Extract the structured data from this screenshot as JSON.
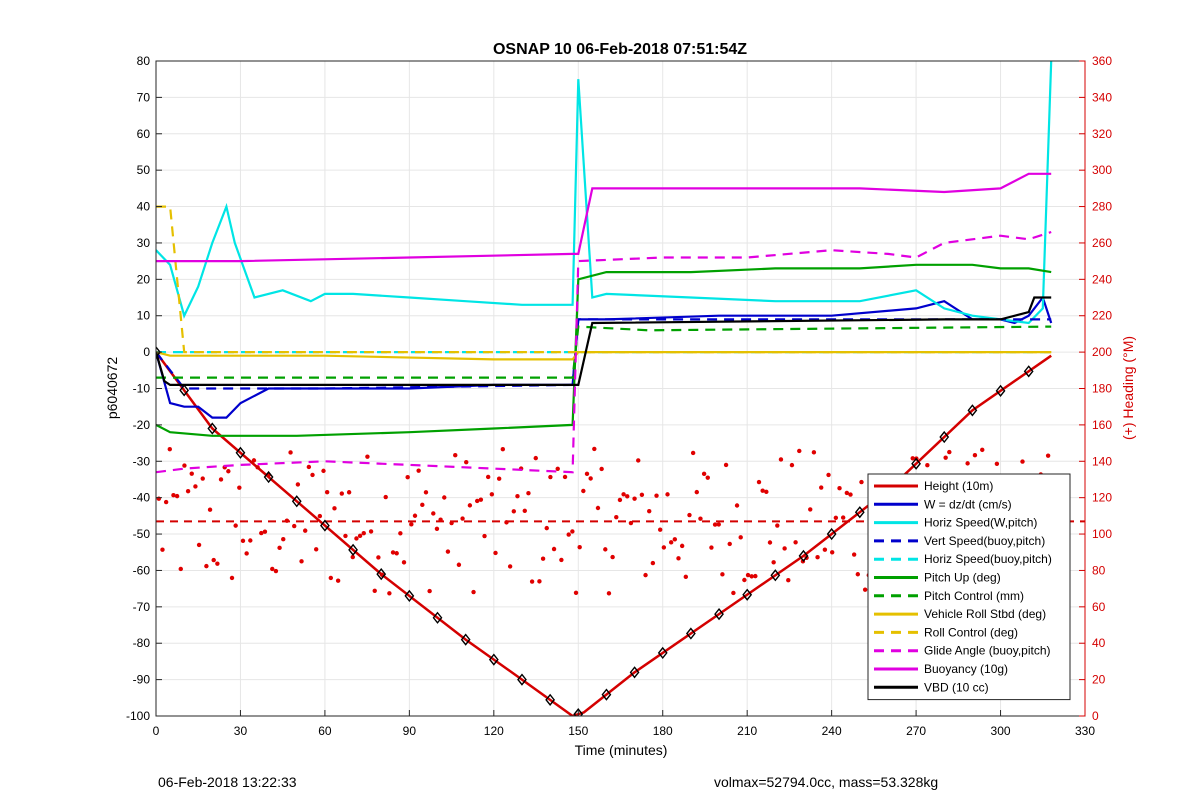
{
  "chart_data": {
    "type": "line",
    "title": "OSNAP 10 06-Feb-2018 07:51:54Z",
    "xlabel": "Time (minutes)",
    "ylabel": "p6040672",
    "y2label": "(+) Heading (°M)",
    "xlim": [
      0,
      330
    ],
    "ylim": [
      -100,
      80
    ],
    "y2lim": [
      0,
      360
    ],
    "xticks": [
      "0",
      "30",
      "60",
      "90",
      "120",
      "150",
      "180",
      "210",
      "240",
      "270",
      "300",
      "330"
    ],
    "yticks": [
      "80",
      "70",
      "60",
      "50",
      "40",
      "30",
      "20",
      "10",
      "0",
      "-10",
      "-20",
      "-30",
      "-40",
      "-50",
      "-60",
      "-70",
      "-80",
      "-90",
      "-100"
    ],
    "y2ticks": [
      "360",
      "340",
      "320",
      "300",
      "280",
      "260",
      "240",
      "220",
      "200",
      "180",
      "160",
      "140",
      "120",
      "100",
      "80",
      "60",
      "40",
      "20",
      "0"
    ],
    "grid": true,
    "legend_position": "bottom-right",
    "colors": {
      "heading_axis": "#d40000"
    },
    "series": [
      {
        "name": "Height (10m)",
        "color": "#d40000",
        "style": "solid",
        "x": [
          0,
          20,
          50,
          80,
          110,
          130,
          148,
          152,
          170,
          200,
          230,
          260,
          290,
          318
        ],
        "y": [
          0,
          -21,
          -41,
          -61,
          -79,
          -90,
          -100,
          -99,
          -88,
          -72,
          -56,
          -38,
          -16,
          -1
        ]
      },
      {
        "name": "W = dz/dt (cm/s)",
        "color": "#0000cc",
        "style": "solid",
        "x": [
          0,
          5,
          10,
          15,
          20,
          25,
          30,
          40,
          60,
          90,
          120,
          148,
          150,
          155,
          160,
          200,
          240,
          270,
          280,
          290,
          300,
          305,
          310,
          315,
          318
        ],
        "y": [
          0,
          -14,
          -15,
          -15,
          -18,
          -18,
          -14,
          -10,
          -10,
          -10,
          -9,
          -9,
          9,
          9,
          9,
          10,
          10,
          12,
          14,
          9,
          9,
          8,
          10,
          15,
          8
        ]
      },
      {
        "name": "Horiz Speed(W,pitch)",
        "color": "#00e5e5",
        "style": "solid",
        "x": [
          0,
          5,
          10,
          15,
          20,
          25,
          28,
          35,
          45,
          55,
          60,
          70,
          90,
          110,
          130,
          148,
          150,
          155,
          160,
          190,
          220,
          250,
          270,
          280,
          290,
          300,
          310,
          315,
          318
        ],
        "y": [
          28,
          24,
          10,
          18,
          30,
          40,
          30,
          15,
          17,
          14,
          16,
          16,
          15,
          14,
          13,
          13,
          75,
          15,
          16,
          15,
          14,
          14,
          17,
          12,
          10,
          9,
          8,
          12,
          80
        ]
      },
      {
        "name": "Vert Speed(buoy,pitch)",
        "color": "#0000cc",
        "style": "dashed",
        "x": [
          0,
          10,
          30,
          60,
          148,
          150,
          318
        ],
        "y": [
          0,
          -10,
          -10,
          -10,
          -9,
          9,
          9
        ]
      },
      {
        "name": "Horiz Speed(buoy,pitch)",
        "color": "#00e5e5",
        "style": "dashed",
        "x": [
          0,
          148,
          150,
          318
        ],
        "y": [
          0,
          0,
          0,
          0
        ]
      },
      {
        "name": "Pitch Up (deg)",
        "color": "#00a000",
        "style": "solid",
        "x": [
          0,
          5,
          20,
          50,
          90,
          120,
          148,
          150,
          160,
          190,
          220,
          250,
          270,
          290,
          300,
          310,
          318
        ],
        "y": [
          -20,
          -22,
          -23,
          -23,
          -22,
          -21,
          -20,
          20,
          22,
          22,
          23,
          23,
          24,
          24,
          23,
          23,
          22
        ]
      },
      {
        "name": "Pitch Control (mm)",
        "color": "#00a000",
        "style": "dashed",
        "x": [
          0,
          148,
          150,
          175,
          318
        ],
        "y": [
          -7,
          -7,
          7,
          6,
          7
        ]
      },
      {
        "name": "Vehicle Roll Stbd (deg)",
        "color": "#e5c000",
        "style": "solid",
        "x": [
          0,
          5,
          10,
          60,
          120,
          148,
          150,
          170,
          200,
          240,
          280,
          300,
          318
        ],
        "y": [
          0,
          -1,
          -1,
          -1,
          -2,
          -2,
          0,
          0,
          0,
          0,
          0,
          0,
          0
        ]
      },
      {
        "name": "Roll Control (deg)",
        "color": "#e5c000",
        "style": "dashed",
        "x": [
          0,
          5,
          10,
          148,
          318
        ],
        "y": [
          40,
          40,
          0,
          0,
          0
        ]
      },
      {
        "name": "Glide Angle (buoy,pitch)",
        "color": "#e000e0",
        "style": "dashed",
        "x": [
          0,
          10,
          30,
          60,
          90,
          120,
          148,
          150,
          180,
          210,
          240,
          260,
          270,
          280,
          300,
          310,
          318
        ],
        "y": [
          -33,
          -32,
          -31,
          -30,
          -31,
          -32,
          -33,
          25,
          26,
          26,
          28,
          27,
          26,
          30,
          32,
          31,
          33
        ]
      },
      {
        "name": "Buoyancy (10g)",
        "color": "#e000e0",
        "style": "solid",
        "x": [
          0,
          30,
          90,
          148,
          150,
          155,
          250,
          280,
          300,
          310,
          318
        ],
        "y": [
          25,
          25,
          26,
          27,
          27,
          45,
          45,
          44,
          45,
          49,
          49
        ]
      },
      {
        "name": "VBD (10 cc)",
        "color": "#000000",
        "style": "solid",
        "x": [
          0,
          3,
          5,
          148,
          150,
          155,
          280,
          300,
          310,
          312,
          318
        ],
        "y": [
          0,
          -8,
          -9,
          -9,
          -9,
          8,
          9,
          9,
          11,
          15,
          15
        ]
      }
    ],
    "heading_mean_y2": 107,
    "heading_range_y2": [
      60,
      160
    ]
  },
  "footer": {
    "left": "06-Feb-2018 13:22:33",
    "right": "volmax=52794.0cc, mass=53.328kg"
  }
}
